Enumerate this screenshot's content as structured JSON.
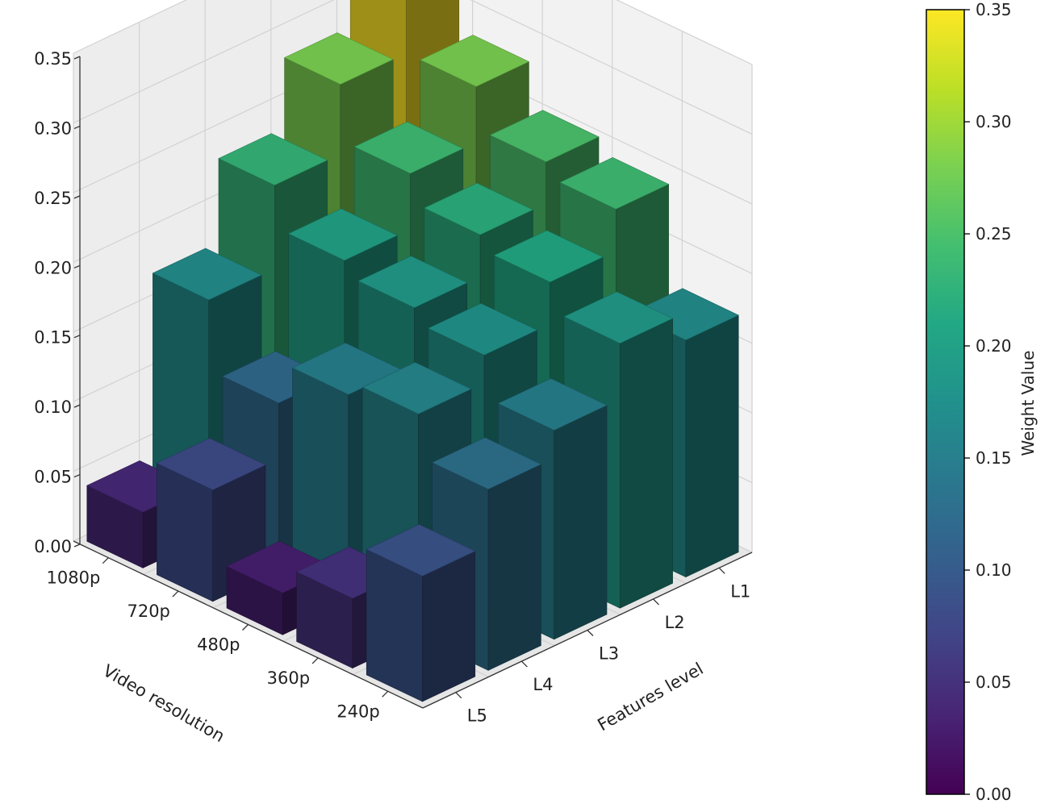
{
  "chart_data": {
    "type": "bar3d",
    "title": "",
    "x_axis": {
      "label": "Video resolution",
      "categories": [
        "1080p",
        "720p",
        "480p",
        "360p",
        "240p"
      ]
    },
    "y_axis": {
      "label": "Features level",
      "categories": [
        "L1",
        "L2",
        "L3",
        "L4",
        "L5"
      ]
    },
    "z_axis": {
      "label": "",
      "range": [
        0,
        0.35
      ],
      "ticks": [
        "0.00",
        "0.05",
        "0.10",
        "0.15",
        "0.20",
        "0.25",
        "0.30",
        "0.35"
      ]
    },
    "values": [
      [
        0.35,
        0.28,
        0.23,
        0.17,
        0.04
      ],
      [
        0.28,
        0.24,
        0.2,
        0.12,
        0.08
      ],
      [
        0.25,
        0.22,
        0.19,
        0.15,
        0.03
      ],
      [
        0.24,
        0.21,
        0.18,
        0.16,
        0.05
      ],
      [
        0.17,
        0.19,
        0.15,
        0.13,
        0.09
      ]
    ],
    "colorbar": {
      "label": "Weight Value",
      "range": [
        0,
        0.35
      ],
      "ticks": [
        "0.00",
        "0.05",
        "0.10",
        "0.15",
        "0.20",
        "0.25",
        "0.30",
        "0.35"
      ],
      "colormap": "viridis"
    },
    "grid": true
  }
}
